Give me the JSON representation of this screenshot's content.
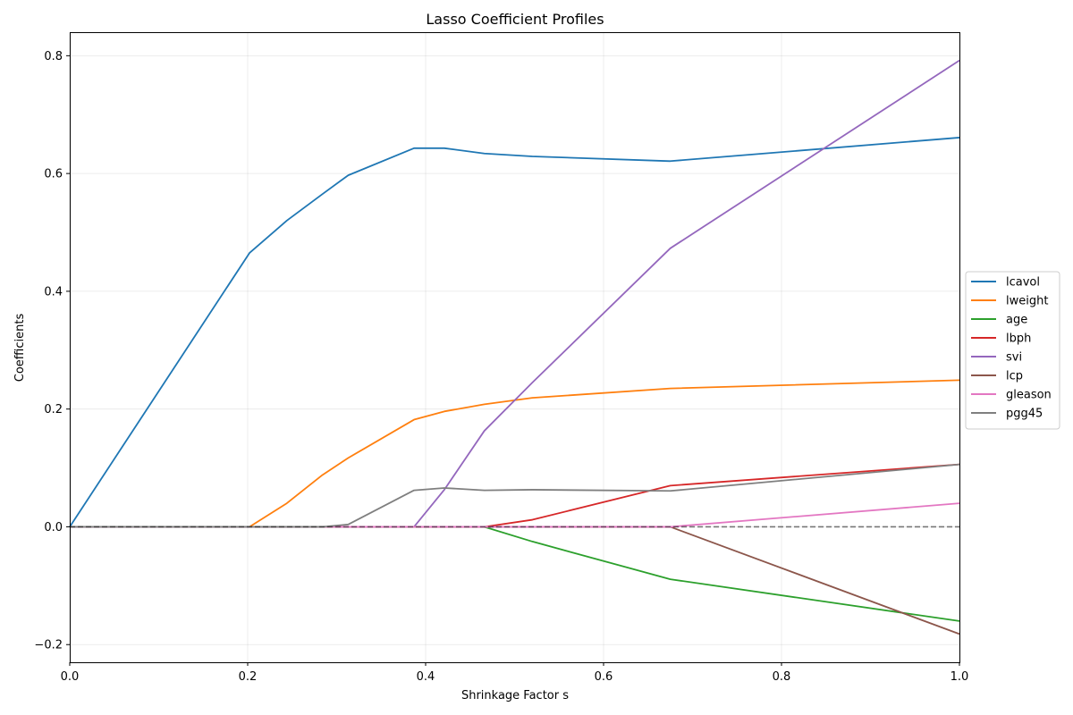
{
  "chart_data": {
    "type": "line",
    "title": "Lasso Coefficient Profiles",
    "xlabel": "Shrinkage Factor s",
    "ylabel": "Coefficients",
    "xlim": [
      0,
      1.0
    ],
    "ylim": [
      -0.23,
      0.84
    ],
    "xticks": [
      0.0,
      0.2,
      0.4,
      0.6,
      0.8,
      1.0
    ],
    "xtick_labels": [
      "0.0",
      "0.2",
      "0.4",
      "0.6",
      "0.8",
      "1.0"
    ],
    "yticks": [
      -0.2,
      0.0,
      0.2,
      0.4,
      0.6,
      0.8
    ],
    "ytick_labels": [
      "−0.2",
      "0.0",
      "0.2",
      "0.4",
      "0.6",
      "0.8"
    ],
    "grid": true,
    "legend_position": "center-right",
    "zero_line": true,
    "x": [
      0.0,
      0.202,
      0.244,
      0.284,
      0.313,
      0.387,
      0.421,
      0.466,
      0.52,
      0.675,
      1.0
    ],
    "series": [
      {
        "name": "lcavol",
        "color": "#1f77b4",
        "values": [
          0.0,
          0.465,
          0.52,
          0.565,
          0.597,
          0.643,
          0.643,
          0.634,
          0.629,
          0.621,
          0.661
        ]
      },
      {
        "name": "lweight",
        "color": "#ff7f0e",
        "values": [
          0.0,
          0.0,
          0.04,
          0.088,
          0.117,
          0.182,
          0.196,
          0.208,
          0.219,
          0.235,
          0.249
        ]
      },
      {
        "name": "age",
        "color": "#2ca02c",
        "values": [
          0.0,
          0.0,
          0.0,
          0.0,
          0.0,
          0.0,
          0.0,
          0.0,
          -0.025,
          -0.089,
          -0.16
        ]
      },
      {
        "name": "lbph",
        "color": "#d62728",
        "values": [
          0.0,
          0.0,
          0.0,
          0.0,
          0.0,
          0.0,
          0.0,
          0.0,
          0.012,
          0.07,
          0.106
        ]
      },
      {
        "name": "svi",
        "color": "#9467bd",
        "values": [
          0.0,
          0.0,
          0.0,
          0.0,
          0.0,
          0.0,
          0.063,
          0.163,
          0.245,
          0.473,
          0.792
        ]
      },
      {
        "name": "lcp",
        "color": "#8c564b",
        "values": [
          0.0,
          0.0,
          0.0,
          0.0,
          0.0,
          0.0,
          0.0,
          0.0,
          0.0,
          0.0,
          -0.182
        ]
      },
      {
        "name": "gleason",
        "color": "#e377c2",
        "values": [
          0.0,
          0.0,
          0.0,
          0.0,
          0.0,
          0.0,
          0.0,
          0.0,
          0.0,
          0.0,
          0.04
        ]
      },
      {
        "name": "pgg45",
        "color": "#7f7f7f",
        "values": [
          0.0,
          0.0,
          0.0,
          0.0,
          0.004,
          0.062,
          0.066,
          0.062,
          0.063,
          0.061,
          0.106
        ]
      }
    ]
  }
}
